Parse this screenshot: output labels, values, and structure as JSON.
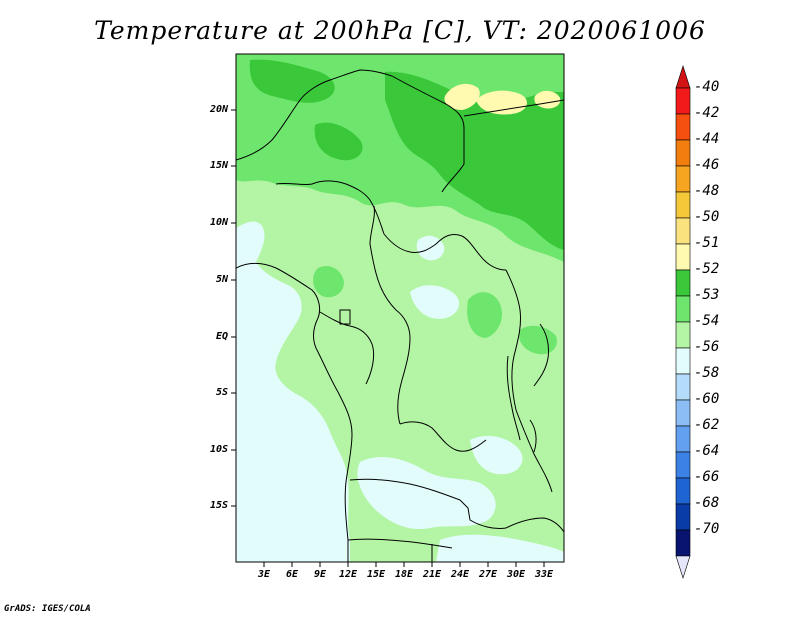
{
  "title": "Temperature at 200hPa [C], VT: 2020061006",
  "credit": "GrADS: IGES/COLA",
  "axes": {
    "latitude_labels": [
      "20N",
      "15N",
      "10N",
      "5N",
      "EQ",
      "5S",
      "10S",
      "15S"
    ],
    "longitude_labels": [
      "3E",
      "6E",
      "9E",
      "12E",
      "15E",
      "18E",
      "21E",
      "24E",
      "27E",
      "30E",
      "33E"
    ]
  },
  "colorbar": {
    "orientation": "vertical",
    "placement": "right",
    "entries": [
      {
        "label": "-40",
        "color": "#f21a1a"
      },
      {
        "label": "-42",
        "color": "#f5500f"
      },
      {
        "label": "-44",
        "color": "#f27e10"
      },
      {
        "label": "-46",
        "color": "#f5a520"
      },
      {
        "label": "-48",
        "color": "#f5c83a"
      },
      {
        "label": "-50",
        "color": "#fae37e"
      },
      {
        "label": "-51",
        "color": "#fffab0"
      },
      {
        "label": "-52",
        "color": "#3ac83a"
      },
      {
        "label": "-53",
        "color": "#6ee66e"
      },
      {
        "label": "-54",
        "color": "#b4f5a5"
      },
      {
        "label": "-56",
        "color": "#e2fcfc"
      },
      {
        "label": "-58",
        "color": "#b4dcfa"
      },
      {
        "label": "-60",
        "color": "#8cbef5"
      },
      {
        "label": "-62",
        "color": "#64a0f0"
      },
      {
        "label": "-64",
        "color": "#3c82e6"
      },
      {
        "label": "-66",
        "color": "#1e64d2"
      },
      {
        "label": "-68",
        "color": "#0a3ca8"
      },
      {
        "label": "-70",
        "color": "#081470"
      }
    ],
    "end_colors": {
      "top": "#d21414",
      "bottom": "#e6e6fa"
    }
  }
}
